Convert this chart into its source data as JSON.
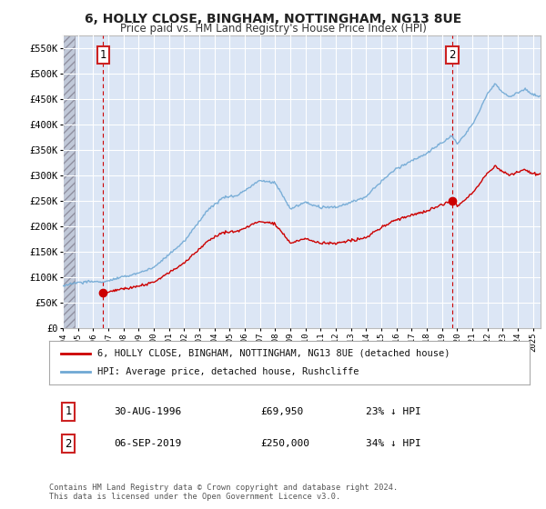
{
  "title1": "6, HOLLY CLOSE, BINGHAM, NOTTINGHAM, NG13 8UE",
  "title2": "Price paid vs. HM Land Registry's House Price Index (HPI)",
  "ylim": [
    0,
    575000
  ],
  "xlim_start": 1994.0,
  "xlim_end": 2025.5,
  "transaction1_x": 1996.664,
  "transaction1_y": 69950,
  "transaction2_x": 2019.676,
  "transaction2_y": 250000,
  "legend_entry1": "6, HOLLY CLOSE, BINGHAM, NOTTINGHAM, NG13 8UE (detached house)",
  "legend_entry2": "HPI: Average price, detached house, Rushcliffe",
  "annotation1_date": "30-AUG-1996",
  "annotation1_price": "£69,950",
  "annotation1_hpi": "23% ↓ HPI",
  "annotation2_date": "06-SEP-2019",
  "annotation2_price": "£250,000",
  "annotation2_hpi": "34% ↓ HPI",
  "footer": "Contains HM Land Registry data © Crown copyright and database right 2024.\nThis data is licensed under the Open Government Licence v3.0.",
  "line_color_hpi": "#6fa8d4",
  "line_color_property": "#cc0000",
  "plot_bg_color": "#dce6f5",
  "fig_bg_color": "#ffffff",
  "grid_color": "#ffffff",
  "dashed_line_color": "#cc0000",
  "hatch_color": "#c0c8d8"
}
